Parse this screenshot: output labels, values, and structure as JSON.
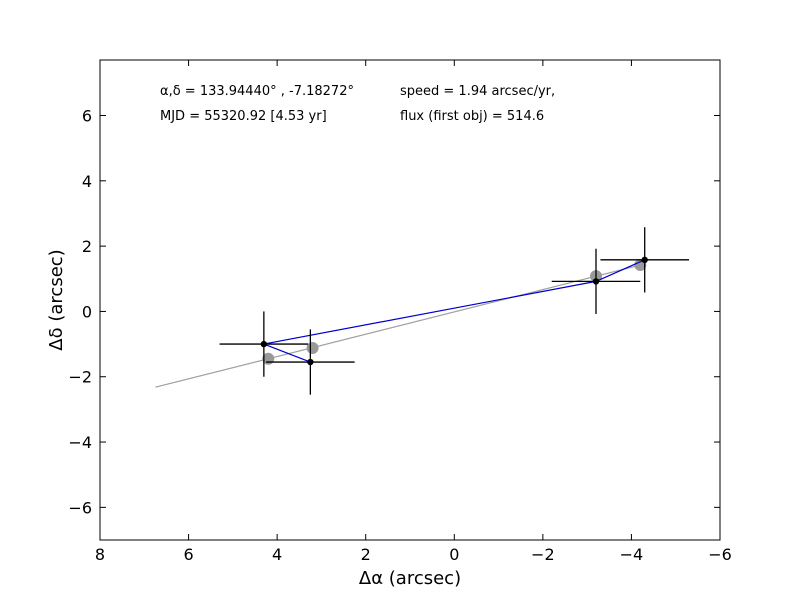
{
  "chart_data": {
    "type": "scatter",
    "xlabel": "Δα (arcsec)",
    "ylabel": "Δδ (arcsec)",
    "xlim": [
      8,
      -6
    ],
    "ylim": [
      -7,
      7.7
    ],
    "x_ticks": [
      8,
      6,
      4,
      2,
      0,
      -2,
      -4,
      -6
    ],
    "y_ticks": [
      -6,
      -4,
      -2,
      0,
      2,
      4,
      6
    ],
    "x_tick_labels": [
      "8",
      "6",
      "4",
      "2",
      "0",
      "−2",
      "−4",
      "−6"
    ],
    "y_tick_labels": [
      "−6",
      "−4",
      "−2",
      "0",
      "2",
      "4",
      "6"
    ],
    "grid": false,
    "annotations": {
      "coords": "α,δ = 133.94440° , -7.18272°",
      "mjd": "MJD = 55320.92 [4.53 yr]",
      "speed": "speed = 1.94 arcsec/yr,",
      "flux": "flux (first obj) = 514.6"
    },
    "observed_points": [
      {
        "x": 4.3,
        "y": -1.0,
        "xerr": 1.0,
        "yerr": 1.0
      },
      {
        "x": 3.25,
        "y": -1.55,
        "xerr": 1.0,
        "yerr": 1.0
      },
      {
        "x": -3.2,
        "y": 0.92,
        "xerr": 1.0,
        "yerr": 1.0
      },
      {
        "x": -4.3,
        "y": 1.58,
        "xerr": 1.0,
        "yerr": 1.0
      }
    ],
    "observed_path_order": [
      1,
      0,
      2,
      3
    ],
    "model_points": [
      {
        "x": 4.2,
        "y": -1.45
      },
      {
        "x": 3.2,
        "y": -1.12
      },
      {
        "x": -3.2,
        "y": 1.08
      },
      {
        "x": -4.2,
        "y": 1.42
      }
    ],
    "fit_line": [
      {
        "x": 6.75,
        "y": -2.32
      },
      {
        "x": -4.2,
        "y": 1.42
      }
    ],
    "colors": {
      "path": "#0000cc",
      "fit": "#a0a0a0",
      "model": "#999999",
      "observed": "#000000"
    }
  }
}
